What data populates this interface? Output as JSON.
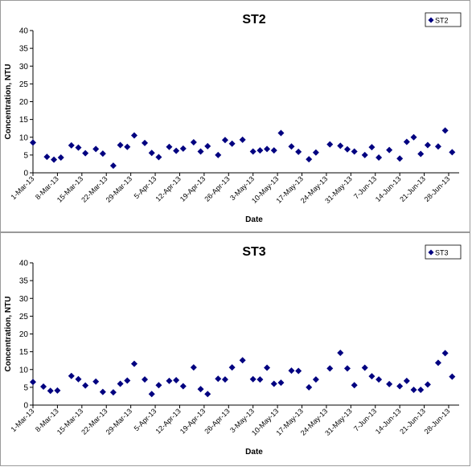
{
  "chart_data": [
    {
      "type": "scatter",
      "title": "ST2",
      "xlabel": "Date",
      "ylabel": "Concentration, NTU",
      "ylim": [
        0,
        40
      ],
      "yticks": [
        0,
        5,
        10,
        15,
        20,
        25,
        30,
        35,
        40
      ],
      "xticks": [
        "1-Mar-13",
        "8-Mar-13",
        "15-Mar-13",
        "22-Mar-13",
        "29-Mar-13",
        "5-Apr-13",
        "12-Apr-13",
        "19-Apr-13",
        "26-Apr-13",
        "3-May-13",
        "10-May-13",
        "17-May-13",
        "24-May-13",
        "31-May-13",
        "7-Jun-13",
        "14-Jun-13",
        "21-Jun-13",
        "28-Jun-13"
      ],
      "xlim": [
        "1-Mar-13",
        "1-Jul-13"
      ],
      "grid": false,
      "legend_position": "top-right",
      "marker_color": "#000080",
      "series": [
        {
          "name": "ST2",
          "points": [
            [
              "1-Mar-13",
              8.5
            ],
            [
              "5-Mar-13",
              4.5
            ],
            [
              "7-Mar-13",
              3.7
            ],
            [
              "9-Mar-13",
              4.3
            ],
            [
              "12-Mar-13",
              7.7
            ],
            [
              "14-Mar-13",
              7.1
            ],
            [
              "16-Mar-13",
              5.5
            ],
            [
              "19-Mar-13",
              6.7
            ],
            [
              "21-Mar-13",
              5.4
            ],
            [
              "24-Mar-13",
              2.0
            ],
            [
              "26-Mar-13",
              7.8
            ],
            [
              "28-Mar-13",
              7.3
            ],
            [
              "30-Mar-13",
              10.5
            ],
            [
              "2-Apr-13",
              8.4
            ],
            [
              "4-Apr-13",
              5.6
            ],
            [
              "6-Apr-13",
              4.4
            ],
            [
              "9-Apr-13",
              7.3
            ],
            [
              "11-Apr-13",
              6.2
            ],
            [
              "13-Apr-13",
              6.8
            ],
            [
              "16-Apr-13",
              8.6
            ],
            [
              "18-Apr-13",
              6.0
            ],
            [
              "20-Apr-13",
              7.5
            ],
            [
              "23-Apr-13",
              5.0
            ],
            [
              "25-Apr-13",
              9.2
            ],
            [
              "27-Apr-13",
              8.2
            ],
            [
              "30-Apr-13",
              9.3
            ],
            [
              "3-May-13",
              6.0
            ],
            [
              "5-May-13",
              6.3
            ],
            [
              "7-May-13",
              6.7
            ],
            [
              "9-May-13",
              6.3
            ],
            [
              "11-May-13",
              11.2
            ],
            [
              "14-May-13",
              7.4
            ],
            [
              "16-May-13",
              5.9
            ],
            [
              "19-May-13",
              3.8
            ],
            [
              "21-May-13",
              5.7
            ],
            [
              "25-May-13",
              8.0
            ],
            [
              "28-May-13",
              7.6
            ],
            [
              "30-May-13",
              6.6
            ],
            [
              "1-Jun-13",
              6.0
            ],
            [
              "4-Jun-13",
              5.0
            ],
            [
              "6-Jun-13",
              7.2
            ],
            [
              "8-Jun-13",
              4.3
            ],
            [
              "11-Jun-13",
              6.4
            ],
            [
              "14-Jun-13",
              4.0
            ],
            [
              "16-Jun-13",
              8.7
            ],
            [
              "18-Jun-13",
              10.0
            ],
            [
              "20-Jun-13",
              5.3
            ],
            [
              "22-Jun-13",
              7.8
            ],
            [
              "25-Jun-13",
              7.4
            ],
            [
              "27-Jun-13",
              11.9
            ],
            [
              "29-Jun-13",
              5.8
            ]
          ]
        }
      ]
    },
    {
      "type": "scatter",
      "title": "ST3",
      "xlabel": "Date",
      "ylabel": "Concentration, NTU",
      "ylim": [
        0,
        40
      ],
      "yticks": [
        0,
        5,
        10,
        15,
        20,
        25,
        30,
        35,
        40
      ],
      "xticks": [
        "1-Mar-13",
        "8-Mar-13",
        "15-Mar-13",
        "22-Mar-13",
        "29-Mar-13",
        "5-Apr-13",
        "12-Apr-13",
        "19-Apr-13",
        "26-Apr-13",
        "3-May-13",
        "10-May-13",
        "17-May-13",
        "24-May-13",
        "31-May-13",
        "7-Jun-13",
        "14-Jun-13",
        "21-Jun-13",
        "28-Jun-13"
      ],
      "xlim": [
        "1-Mar-13",
        "1-Jul-13"
      ],
      "grid": false,
      "legend_position": "top-right",
      "marker_color": "#000080",
      "series": [
        {
          "name": "ST3",
          "points": [
            [
              "1-Mar-13",
              6.5
            ],
            [
              "4-Mar-13",
              5.2
            ],
            [
              "6-Mar-13",
              4.0
            ],
            [
              "8-Mar-13",
              4.1
            ],
            [
              "12-Mar-13",
              8.2
            ],
            [
              "14-Mar-13",
              7.3
            ],
            [
              "16-Mar-13",
              5.5
            ],
            [
              "19-Mar-13",
              6.6
            ],
            [
              "21-Mar-13",
              3.7
            ],
            [
              "24-Mar-13",
              3.6
            ],
            [
              "26-Mar-13",
              6.0
            ],
            [
              "28-Mar-13",
              6.9
            ],
            [
              "30-Mar-13",
              11.6
            ],
            [
              "2-Apr-13",
              7.2
            ],
            [
              "4-Apr-13",
              3.1
            ],
            [
              "6-Apr-13",
              5.6
            ],
            [
              "9-Apr-13",
              6.8
            ],
            [
              "11-Apr-13",
              7.0
            ],
            [
              "13-Apr-13",
              5.3
            ],
            [
              "16-Apr-13",
              10.6
            ],
            [
              "18-Apr-13",
              4.5
            ],
            [
              "20-Apr-13",
              3.1
            ],
            [
              "23-Apr-13",
              7.4
            ],
            [
              "25-Apr-13",
              7.2
            ],
            [
              "27-Apr-13",
              10.6
            ],
            [
              "30-Apr-13",
              12.6
            ],
            [
              "3-May-13",
              7.3
            ],
            [
              "5-May-13",
              7.2
            ],
            [
              "7-May-13",
              10.5
            ],
            [
              "9-May-13",
              6.0
            ],
            [
              "11-May-13",
              6.3
            ],
            [
              "14-May-13",
              9.7
            ],
            [
              "16-May-13",
              9.6
            ],
            [
              "19-May-13",
              5.0
            ],
            [
              "21-May-13",
              7.2
            ],
            [
              "25-May-13",
              10.3
            ],
            [
              "28-May-13",
              14.7
            ],
            [
              "30-May-13",
              10.3
            ],
            [
              "1-Jun-13",
              5.6
            ],
            [
              "4-Jun-13",
              10.5
            ],
            [
              "6-Jun-13",
              8.1
            ],
            [
              "8-Jun-13",
              7.2
            ],
            [
              "11-Jun-13",
              5.9
            ],
            [
              "14-Jun-13",
              5.3
            ],
            [
              "16-Jun-13",
              6.8
            ],
            [
              "18-Jun-13",
              4.3
            ],
            [
              "20-Jun-13",
              4.3
            ],
            [
              "22-Jun-13",
              5.8
            ],
            [
              "25-Jun-13",
              11.9
            ],
            [
              "27-Jun-13",
              14.6
            ],
            [
              "29-Jun-13",
              8.0
            ]
          ]
        }
      ]
    }
  ]
}
